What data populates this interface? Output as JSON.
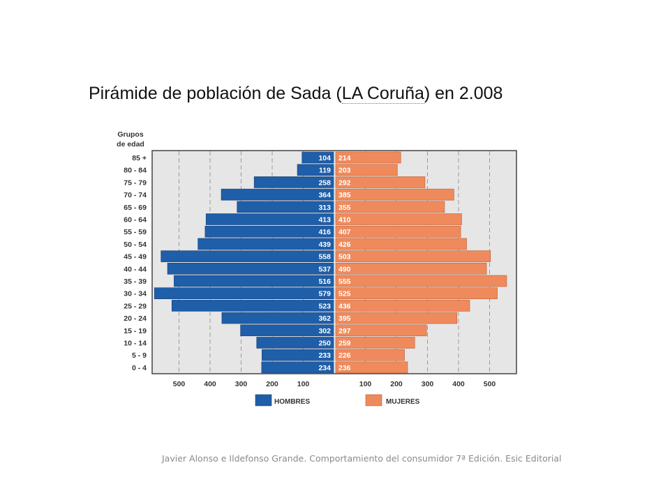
{
  "title": {
    "prefix": "Pirámide de población de Sada (",
    "place": "LA Coruña",
    "suffix": ")  en 2.008"
  },
  "caption": "Javier Alonso e Ildefonso Grande. Comportamiento del consumidor 7ª Edición. Esic Editorial",
  "chart_data": {
    "type": "bar",
    "orientation": "horizontal-population-pyramid",
    "age_header": [
      "Grupos",
      "de edad"
    ],
    "categories": [
      "85 +",
      "80 - 84",
      "75 - 79",
      "70 - 74",
      "65 - 69",
      "60 - 64",
      "55 - 59",
      "50 - 54",
      "45 - 49",
      "40 - 44",
      "35 - 39",
      "30 - 34",
      "25 - 29",
      "20 - 24",
      "15 - 19",
      "10 - 14",
      "5 - 9",
      "0 - 4"
    ],
    "series": [
      {
        "name": "HOMBRES",
        "color": "#1f5ea8",
        "side": "left",
        "values": [
          104,
          119,
          258,
          364,
          313,
          413,
          416,
          439,
          558,
          537,
          516,
          579,
          523,
          362,
          302,
          250,
          233,
          234
        ]
      },
      {
        "name": "MUJERES",
        "color": "#ef8a5c",
        "side": "right",
        "values": [
          214,
          203,
          292,
          385,
          355,
          410,
          407,
          426,
          503,
          490,
          555,
          525,
          436,
          395,
          297,
          259,
          226,
          236
        ]
      }
    ],
    "xticks": [
      500,
      400,
      300,
      200,
      100
    ],
    "xlim": [
      0,
      600
    ],
    "grid": true,
    "grid_style": "dashed",
    "legend": "bottom",
    "plot_background": "#e6e6e6"
  }
}
